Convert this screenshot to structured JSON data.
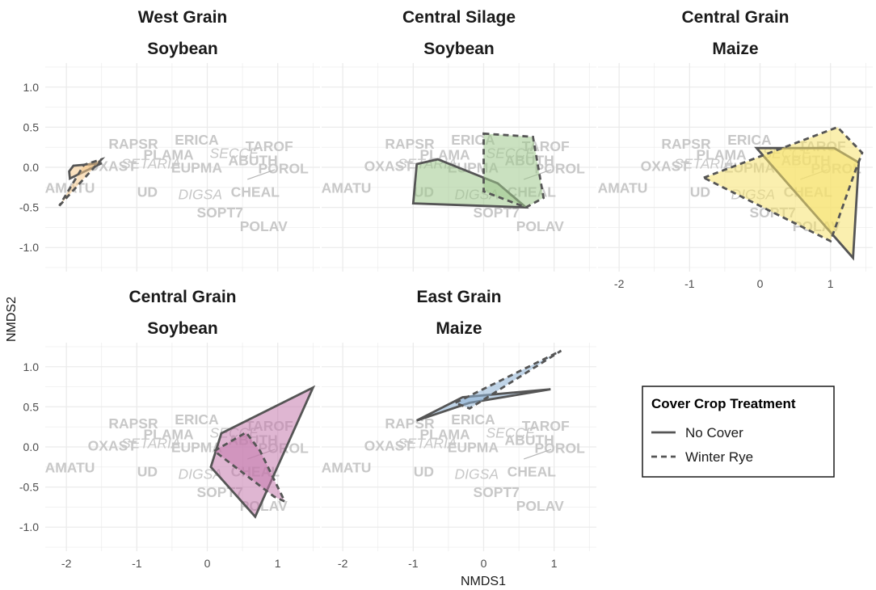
{
  "chart_data": {
    "type": "scatter",
    "xlabel": "NMDS1",
    "ylabel": "NMDS2",
    "xlim": [
      -2.3,
      1.6
    ],
    "ylim": [
      -1.3,
      1.3
    ],
    "x_ticks": [
      -2,
      -1,
      0,
      1
    ],
    "y_ticks": [
      1.0,
      0.5,
      0.0,
      -0.5,
      -1.0
    ],
    "x_tick_labels": [
      "-2",
      "-1",
      "0",
      "1"
    ],
    "y_tick_labels": [
      "1.0",
      "0.5",
      "0.0",
      "-0.5",
      "-1.0"
    ],
    "grid": true,
    "species": [
      {
        "label": "RAPSR",
        "x": -1.05,
        "y": 0.28,
        "style": "bold"
      },
      {
        "label": "ERICA",
        "x": -0.15,
        "y": 0.33,
        "style": "bold"
      },
      {
        "label": "TAROF",
        "x": 0.88,
        "y": 0.25,
        "style": "bold"
      },
      {
        "label": "PLAMA",
        "x": -0.55,
        "y": 0.14,
        "style": "bold"
      },
      {
        "label": "SECCE",
        "x": 0.38,
        "y": 0.16,
        "style": "italic"
      },
      {
        "label": "ABUTH",
        "x": 0.65,
        "y": 0.07,
        "style": "bold"
      },
      {
        "label": "SETARIA",
        "x": -0.8,
        "y": 0.03,
        "style": "italic"
      },
      {
        "label": "OXAST",
        "x": -1.35,
        "y": 0.0,
        "style": "bold"
      },
      {
        "label": "EUPMA",
        "x": -0.15,
        "y": -0.02,
        "style": "bold"
      },
      {
        "label": "POROL",
        "x": 1.08,
        "y": -0.03,
        "style": "bold"
      },
      {
        "label": "AMATU",
        "x": -1.95,
        "y": -0.27,
        "style": "bold"
      },
      {
        "label": "UD",
        "x": -0.85,
        "y": -0.32,
        "style": "bold"
      },
      {
        "label": "DIGSA",
        "x": -0.1,
        "y": -0.35,
        "style": "italic"
      },
      {
        "label": "CHEAL",
        "x": 0.68,
        "y": -0.32,
        "style": "bold"
      },
      {
        "label": "SOPT7",
        "x": 0.18,
        "y": -0.58,
        "style": "bold"
      },
      {
        "label": "POLAV",
        "x": 0.8,
        "y": -0.75,
        "style": "bold"
      }
    ],
    "connector_lines": [
      {
        "from": [
          0.57,
          -0.15
        ],
        "to": [
          0.96,
          -0.03
        ]
      }
    ],
    "panels": [
      {
        "title": "West Grain",
        "subtitle": "Soybean",
        "fill": "#f5c98a",
        "show_x_ticks": false,
        "show_y_ticks": true,
        "series": [
          {
            "name": "No Cover",
            "dash": "solid",
            "points": [
              [
                -1.9,
                0.02
              ],
              [
                -1.5,
                0.05
              ],
              [
                -1.95,
                -0.14
              ],
              [
                -1.96,
                -0.05
              ]
            ]
          },
          {
            "name": "Winter Rye",
            "dash": "dashed",
            "points": [
              [
                -2.1,
                -0.48
              ],
              [
                -1.5,
                0.1
              ],
              [
                -1.75,
                0.03
              ]
            ]
          }
        ]
      },
      {
        "title": "Central Silage",
        "subtitle": "Soybean",
        "fill": "#9fc98d",
        "show_x_ticks": false,
        "show_y_ticks": false,
        "series": [
          {
            "name": "No Cover",
            "dash": "solid",
            "points": [
              [
                -1.0,
                -0.45
              ],
              [
                -0.95,
                0.04
              ],
              [
                -0.65,
                0.1
              ],
              [
                0.2,
                -0.2
              ],
              [
                0.6,
                -0.5
              ]
            ]
          },
          {
            "name": "Winter Rye",
            "dash": "dashed",
            "points": [
              [
                0.0,
                0.42
              ],
              [
                0.7,
                0.38
              ],
              [
                0.85,
                -0.38
              ],
              [
                0.6,
                -0.5
              ],
              [
                0.0,
                -0.3
              ]
            ]
          }
        ]
      },
      {
        "title": "Central Grain",
        "subtitle": "Maize",
        "fill": "#f5e26e",
        "show_x_ticks": true,
        "show_y_ticks": false,
        "series": [
          {
            "name": "No Cover",
            "dash": "solid",
            "points": [
              [
                -0.05,
                0.24
              ],
              [
                1.05,
                0.24
              ],
              [
                1.4,
                0.06
              ],
              [
                1.32,
                -1.13
              ]
            ]
          },
          {
            "name": "Winter Rye",
            "dash": "dashed",
            "points": [
              [
                -0.8,
                -0.13
              ],
              [
                1.1,
                0.5
              ],
              [
                1.45,
                0.18
              ],
              [
                1.35,
                -0.05
              ],
              [
                1.0,
                -0.92
              ]
            ]
          }
        ]
      },
      {
        "title": "Central Grain",
        "subtitle": "Soybean",
        "fill": "#c47aad",
        "show_x_ticks": true,
        "show_y_ticks": true,
        "series": [
          {
            "name": "No Cover",
            "dash": "solid",
            "points": [
              [
                0.2,
                0.17
              ],
              [
                1.5,
                0.74
              ],
              [
                0.68,
                -0.87
              ],
              [
                0.05,
                -0.25
              ]
            ]
          },
          {
            "name": "Winter Rye",
            "dash": "dashed",
            "points": [
              [
                0.1,
                -0.05
              ],
              [
                0.55,
                0.18
              ],
              [
                0.75,
                -0.05
              ],
              [
                1.1,
                -0.68
              ],
              [
                0.95,
                -0.62
              ]
            ]
          }
        ]
      },
      {
        "title": "East Grain",
        "subtitle": "Maize",
        "fill": "#8eb2d6",
        "show_x_ticks": true,
        "show_y_ticks": false,
        "series": [
          {
            "name": "No Cover",
            "dash": "solid",
            "points": [
              [
                -0.95,
                0.33
              ],
              [
                -0.3,
                0.62
              ],
              [
                0.95,
                0.72
              ],
              [
                -0.2,
                0.55
              ]
            ]
          },
          {
            "name": "Winter Rye",
            "dash": "dashed",
            "points": [
              [
                -0.4,
                0.55
              ],
              [
                1.1,
                1.2
              ],
              [
                -0.2,
                0.48
              ]
            ]
          }
        ]
      }
    ],
    "legend": {
      "title": "Cover Crop Treatment",
      "position": "bottom-right",
      "entries": [
        {
          "label": "No Cover",
          "dash": "solid"
        },
        {
          "label": "Winter Rye",
          "dash": "dashed"
        }
      ]
    },
    "colors": {
      "outline": "#555555",
      "grid": "#ebebeb",
      "species_text": "#c8c8c8"
    }
  }
}
